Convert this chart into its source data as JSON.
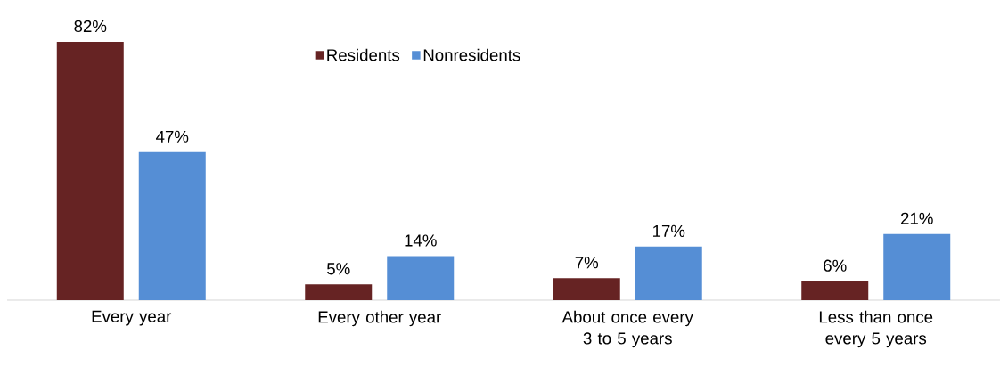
{
  "chart_data": {
    "type": "bar",
    "categories": [
      "Every year",
      "Every other year",
      "About once every 3 to 5 years",
      "Less than once every 5 years"
    ],
    "series": [
      {
        "name": "Residents",
        "color": "#662323",
        "values": [
          82,
          5,
          7,
          6
        ],
        "value_labels": [
          "82%",
          "5%",
          "7%",
          "6%"
        ]
      },
      {
        "name": "Nonresidents",
        "color": "#558ed5",
        "values": [
          47,
          14,
          17,
          21
        ],
        "value_labels": [
          "47%",
          "14%",
          "17%",
          "21%"
        ]
      }
    ],
    "legend": "top"
  }
}
